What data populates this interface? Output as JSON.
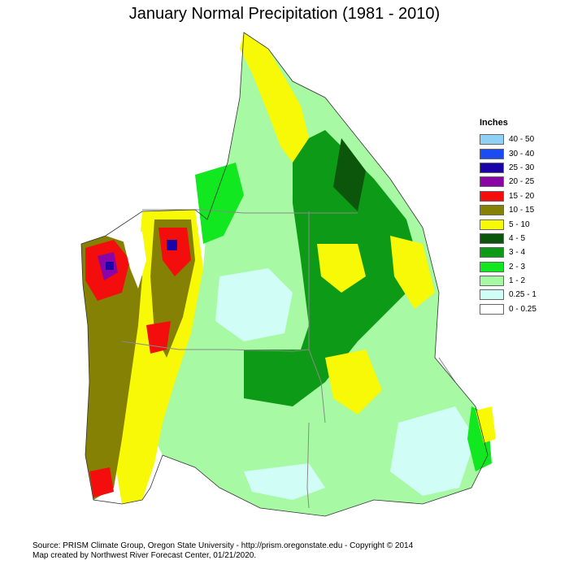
{
  "title": "January Normal Precipitation (1981 - 2010)",
  "legend": {
    "title": "Inches",
    "items": [
      {
        "label": "40 - 50",
        "color": "#8fd0f6"
      },
      {
        "label": "30 - 40",
        "color": "#1a4cf2"
      },
      {
        "label": "25 - 30",
        "color": "#1a04a8"
      },
      {
        "label": "20 - 25",
        "color": "#8a05a5"
      },
      {
        "label": "15 - 20",
        "color": "#f40d0d"
      },
      {
        "label": "10 - 15",
        "color": "#848104"
      },
      {
        "label": "5 - 10",
        "color": "#f8f907"
      },
      {
        "label": "4 - 5",
        "color": "#0c560c"
      },
      {
        "label": "3 - 4",
        "color": "#0d9a16"
      },
      {
        "label": "2 - 3",
        "color": "#12e820"
      },
      {
        "label": "1 - 2",
        "color": "#a7f9a3"
      },
      {
        "label": "0.25 - 1",
        "color": "#d1fdf7"
      },
      {
        "label": "0 - 0.25",
        "color": "#ffffff"
      }
    ]
  },
  "footer": {
    "line1": "Source: PRISM Climate Group, Oregon State University - http://prism.oregonstate.edu - Copyright © 2014",
    "line2": "Map created by Northwest River Forecast Center, 01/21/2020."
  }
}
